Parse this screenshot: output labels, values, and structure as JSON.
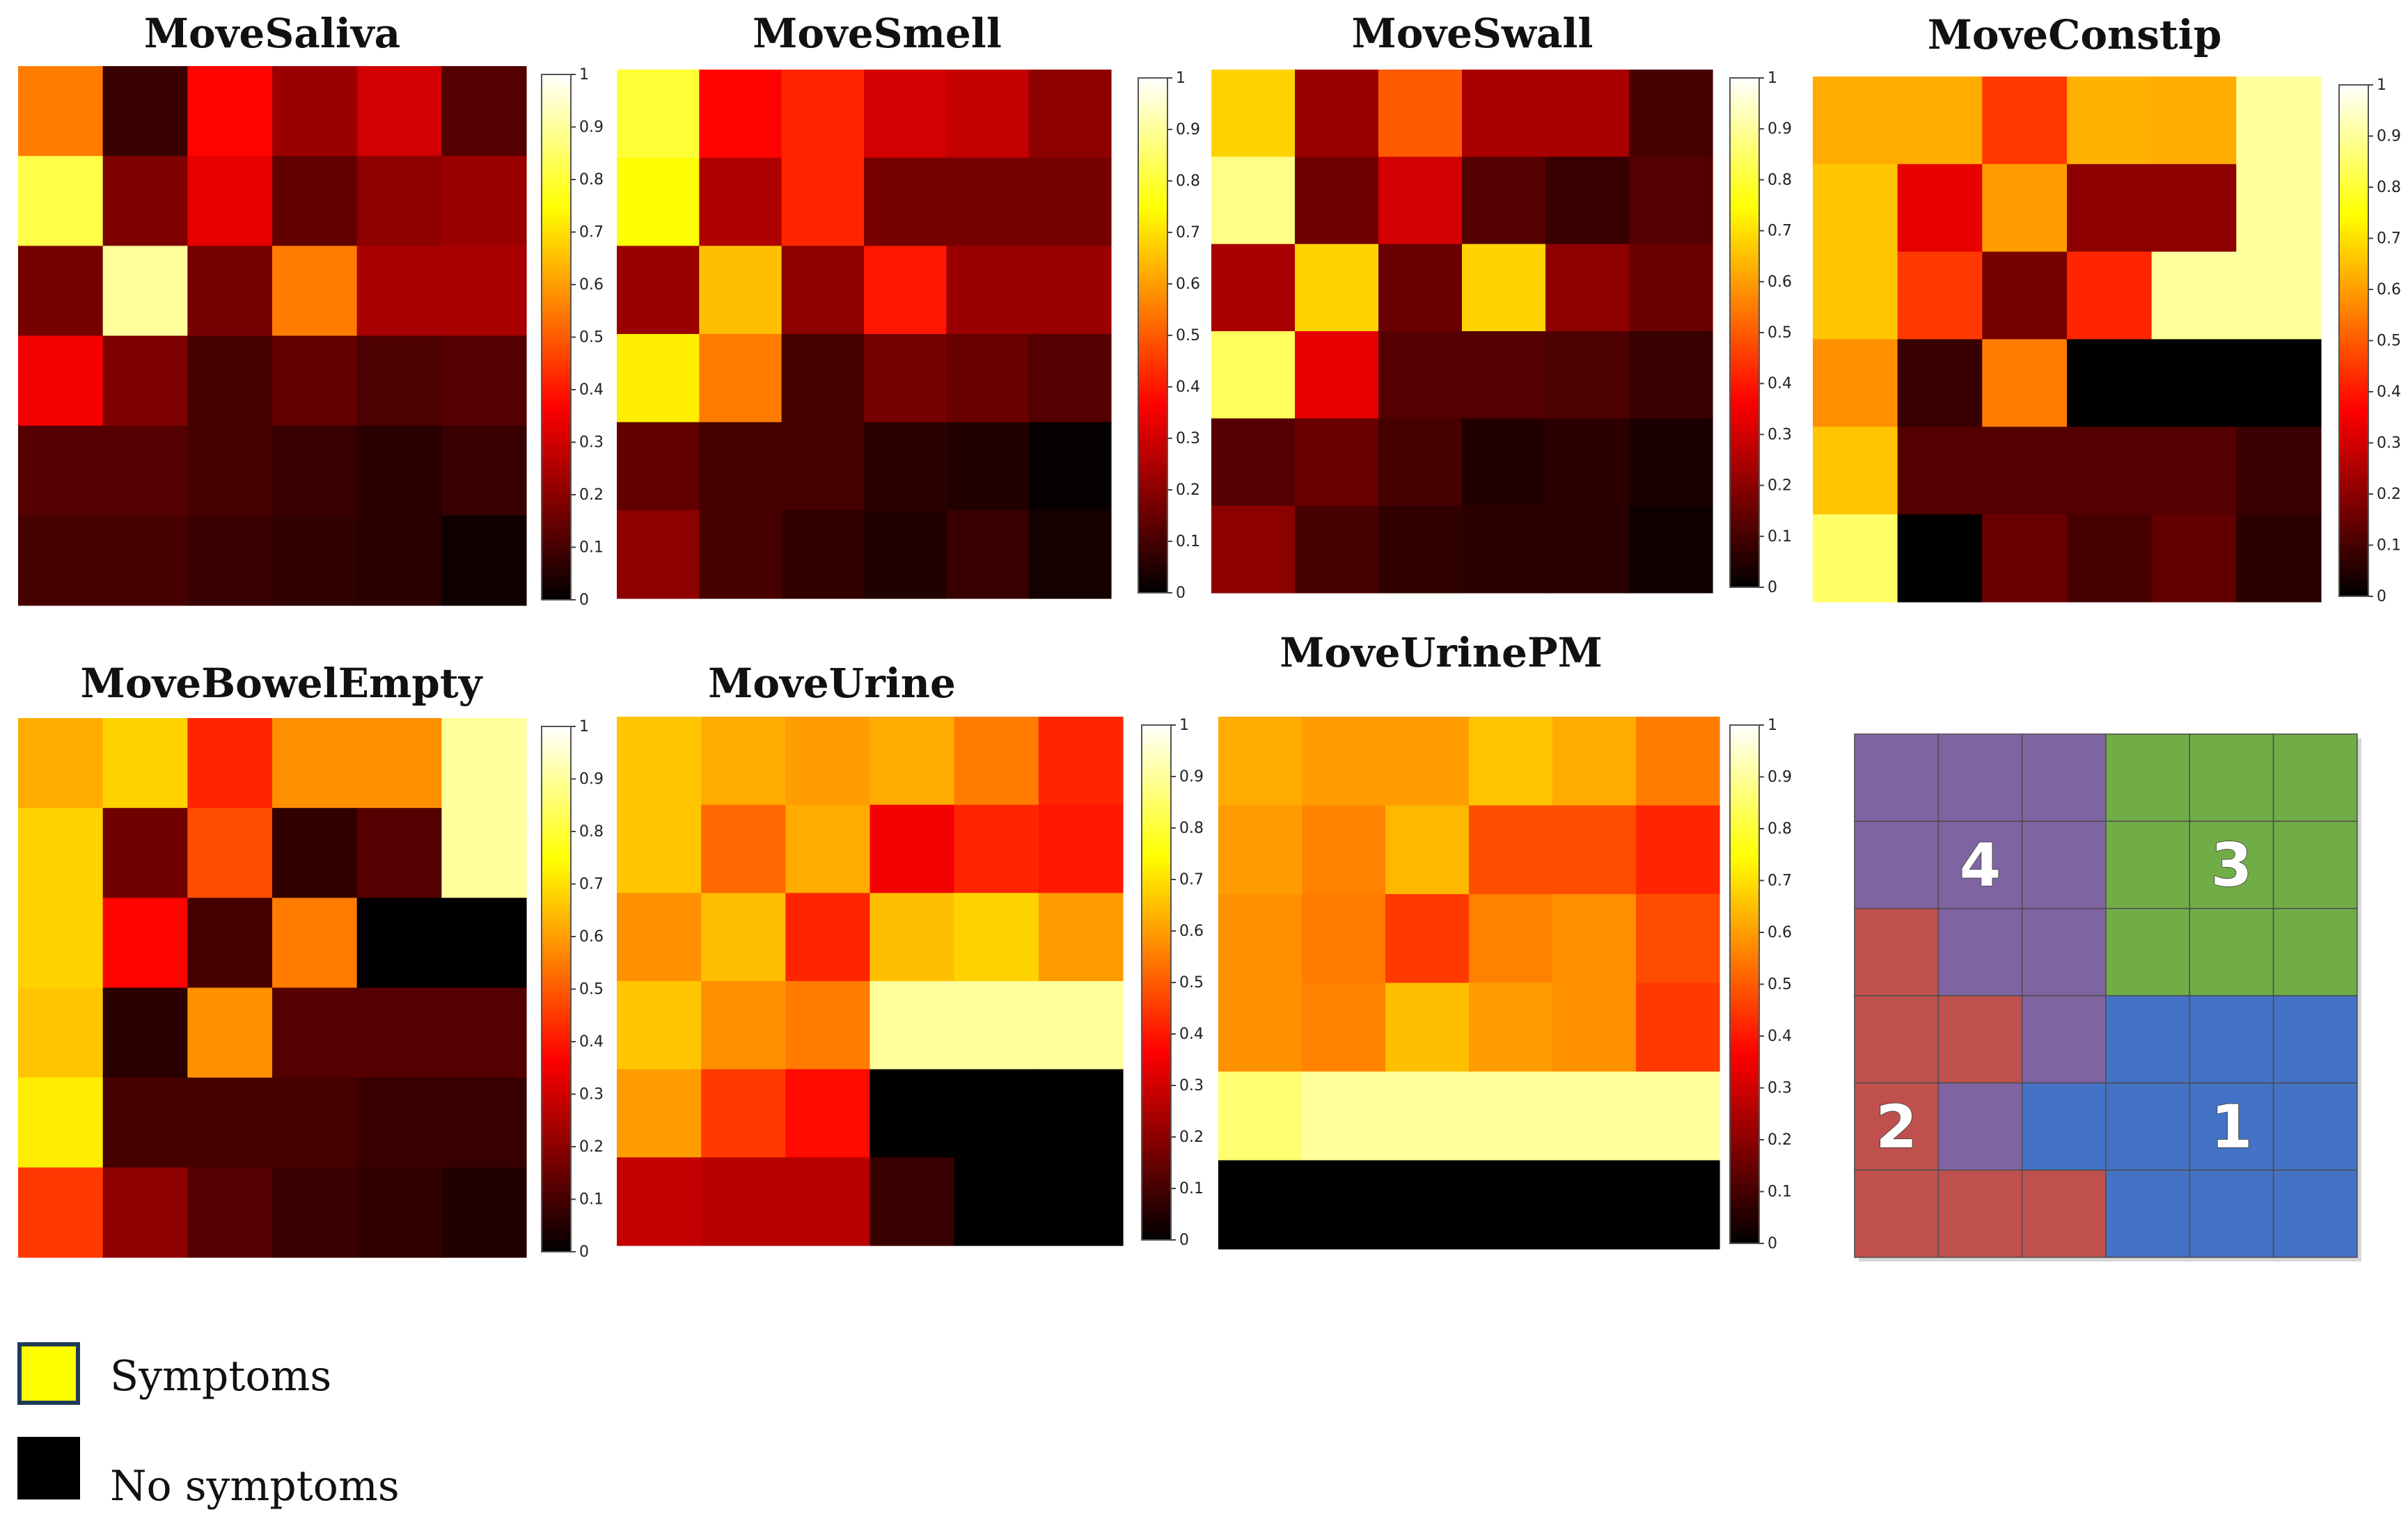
{
  "chart_data": {
    "type": "heatmap",
    "colorscale": "hot",
    "range": [
      0,
      1
    ],
    "colorbar_ticks": [
      "0",
      "0.1",
      "0.2",
      "0.3",
      "0.4",
      "0.5",
      "0.6",
      "0.7",
      "0.8",
      "0.9",
      "1"
    ],
    "panels": [
      {
        "title": "MoveSaliva",
        "values": [
          [
            0.55,
            0.08,
            0.37,
            0.22,
            0.3,
            0.12
          ],
          [
            0.82,
            0.18,
            0.33,
            0.14,
            0.2,
            0.22
          ],
          [
            0.17,
            0.9,
            0.17,
            0.55,
            0.24,
            0.24
          ],
          [
            0.35,
            0.18,
            0.1,
            0.14,
            0.11,
            0.12
          ],
          [
            0.12,
            0.12,
            0.1,
            0.08,
            0.06,
            0.08
          ],
          [
            0.1,
            0.1,
            0.08,
            0.07,
            0.06,
            0.02
          ]
        ]
      },
      {
        "title": "MoveSmell",
        "values": [
          [
            0.8,
            0.37,
            0.42,
            0.3,
            0.28,
            0.2
          ],
          [
            0.75,
            0.25,
            0.42,
            0.17,
            0.17,
            0.17
          ],
          [
            0.22,
            0.65,
            0.2,
            0.4,
            0.22,
            0.22
          ],
          [
            0.72,
            0.55,
            0.1,
            0.17,
            0.15,
            0.12
          ],
          [
            0.14,
            0.1,
            0.1,
            0.06,
            0.05,
            0.01
          ],
          [
            0.2,
            0.1,
            0.07,
            0.05,
            0.08,
            0.03
          ]
        ]
      },
      {
        "title": "MoveSwall",
        "values": [
          [
            0.68,
            0.22,
            0.5,
            0.24,
            0.24,
            0.1
          ],
          [
            0.88,
            0.16,
            0.3,
            0.12,
            0.08,
            0.12
          ],
          [
            0.24,
            0.68,
            0.15,
            0.68,
            0.2,
            0.15
          ],
          [
            0.84,
            0.33,
            0.12,
            0.12,
            0.11,
            0.08
          ],
          [
            0.12,
            0.15,
            0.1,
            0.05,
            0.06,
            0.04
          ],
          [
            0.2,
            0.1,
            0.07,
            0.06,
            0.06,
            0.02
          ]
        ]
      },
      {
        "title": "MoveConstip",
        "values": [
          [
            0.62,
            0.62,
            0.45,
            0.63,
            0.62,
            0.9
          ],
          [
            0.66,
            0.33,
            0.6,
            0.2,
            0.2,
            0.9
          ],
          [
            0.66,
            0.45,
            0.17,
            0.42,
            0.9,
            0.9
          ],
          [
            0.58,
            0.08,
            0.55,
            0.0,
            0.0,
            0.0
          ],
          [
            0.66,
            0.12,
            0.12,
            0.12,
            0.12,
            0.08
          ],
          [
            0.85,
            0.0,
            0.15,
            0.1,
            0.14,
            0.06
          ]
        ]
      },
      {
        "title": "MoveBowelEmpty",
        "values": [
          [
            0.62,
            0.68,
            0.42,
            0.58,
            0.58,
            0.9
          ],
          [
            0.68,
            0.16,
            0.48,
            0.07,
            0.12,
            0.9
          ],
          [
            0.68,
            0.37,
            0.1,
            0.55,
            0.0,
            0.0
          ],
          [
            0.66,
            0.06,
            0.58,
            0.12,
            0.12,
            0.12
          ],
          [
            0.72,
            0.1,
            0.1,
            0.1,
            0.08,
            0.08
          ],
          [
            0.45,
            0.2,
            0.12,
            0.08,
            0.07,
            0.05
          ]
        ]
      },
      {
        "title": "MoveUrine",
        "values": [
          [
            0.66,
            0.62,
            0.6,
            0.62,
            0.55,
            0.42
          ],
          [
            0.66,
            0.52,
            0.62,
            0.35,
            0.42,
            0.4
          ],
          [
            0.58,
            0.65,
            0.42,
            0.65,
            0.68,
            0.6
          ],
          [
            0.66,
            0.58,
            0.55,
            0.9,
            0.9,
            0.9
          ],
          [
            0.6,
            0.45,
            0.38,
            0.0,
            0.0,
            0.0
          ],
          [
            0.28,
            0.26,
            0.26,
            0.08,
            0.0,
            0.0
          ]
        ]
      },
      {
        "title": "MoveUrinePM",
        "values": [
          [
            0.62,
            0.6,
            0.6,
            0.66,
            0.62,
            0.55
          ],
          [
            0.6,
            0.56,
            0.64,
            0.48,
            0.48,
            0.42
          ],
          [
            0.58,
            0.55,
            0.45,
            0.56,
            0.58,
            0.48
          ],
          [
            0.58,
            0.56,
            0.65,
            0.6,
            0.58,
            0.45
          ],
          [
            0.86,
            0.9,
            0.9,
            0.9,
            0.9,
            0.9
          ],
          [
            0.0,
            0.0,
            0.0,
            0.0,
            0.0,
            0.0
          ]
        ]
      }
    ],
    "region_key": {
      "labels": [
        "1",
        "2",
        "3",
        "4"
      ],
      "colors": {
        "1": "#4472c4",
        "2": "#c0504d",
        "3": "#70ad47",
        "4": "#8064a2"
      },
      "grid": [
        [
          "4",
          "4",
          "4",
          "3",
          "3",
          "3"
        ],
        [
          "4",
          "4",
          "4",
          "3",
          "3",
          "3"
        ],
        [
          "2",
          "4",
          "4",
          "3",
          "3",
          "3"
        ],
        [
          "2",
          "2",
          "4",
          "1",
          "1",
          "1"
        ],
        [
          "2",
          "4",
          "1",
          "1",
          "1",
          "1"
        ],
        [
          "2",
          "2",
          "2",
          "1",
          "1",
          "1"
        ]
      ]
    },
    "legend": [
      {
        "label": "Symptoms",
        "color": "#ffff00"
      },
      {
        "label": "No symptoms",
        "color": "#000000"
      }
    ]
  }
}
